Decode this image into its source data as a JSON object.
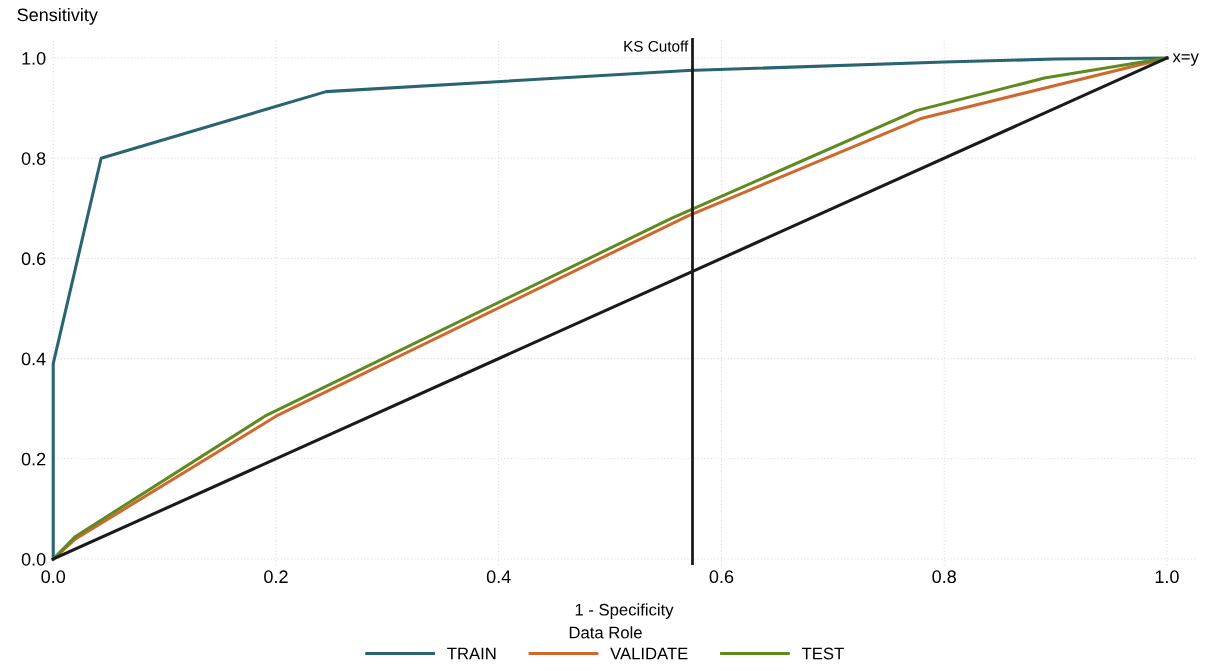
{
  "chart_data": {
    "type": "line",
    "xlabel": "1 - Specificity",
    "ylabel": "Sensitivity",
    "legend_title": "Data Role",
    "legend": "bottom",
    "grid": true,
    "line_style": "solid",
    "xlim": [
      -0.002,
      1.027
    ],
    "ylim": [
      -0.012,
      1.04
    ],
    "xticks": [
      {
        "value": 0,
        "label": "0.0"
      },
      0.2,
      0.4,
      0.6,
      0.8,
      {
        "value": 1,
        "label": "1.0"
      }
    ],
    "yticks": [
      {
        "value": 0,
        "label": "0.0"
      },
      0.2,
      0.4,
      0.6,
      0.8,
      {
        "value": 1,
        "label": "1.0"
      }
    ],
    "series": [
      {
        "name": "TRAIN",
        "color": "#2a6470",
        "x": [
          0,
          0,
          0.043,
          0.245,
          0.57,
          0.8,
          0.9,
          1
        ],
        "values": [
          0,
          0.39,
          0.8,
          0.933,
          0.975,
          0.992,
          0.998,
          1
        ]
      },
      {
        "name": "VALIDATE",
        "color": "#d0672e",
        "x": [
          0,
          0.02,
          0.2,
          0.57,
          0.78,
          1
        ],
        "values": [
          0,
          0.04,
          0.285,
          0.685,
          0.88,
          1
        ]
      },
      {
        "name": "TEST",
        "color": "#5f8a1f",
        "x": [
          0,
          0.02,
          0.19,
          0.555,
          0.775,
          0.89,
          1
        ],
        "values": [
          0,
          0.045,
          0.285,
          0.68,
          0.895,
          0.96,
          1
        ]
      },
      {
        "color": "#1a1a1a",
        "x": [
          0,
          1
        ],
        "values": [
          0,
          1
        ]
      }
    ],
    "annotations": [
      {
        "text": "x=y",
        "x": 1,
        "y": 1
      }
    ],
    "ref_lines": [
      {
        "axis": "x",
        "value": 0.574,
        "label": "KS Cutoff",
        "color": "#1a1a1a"
      }
    ]
  }
}
